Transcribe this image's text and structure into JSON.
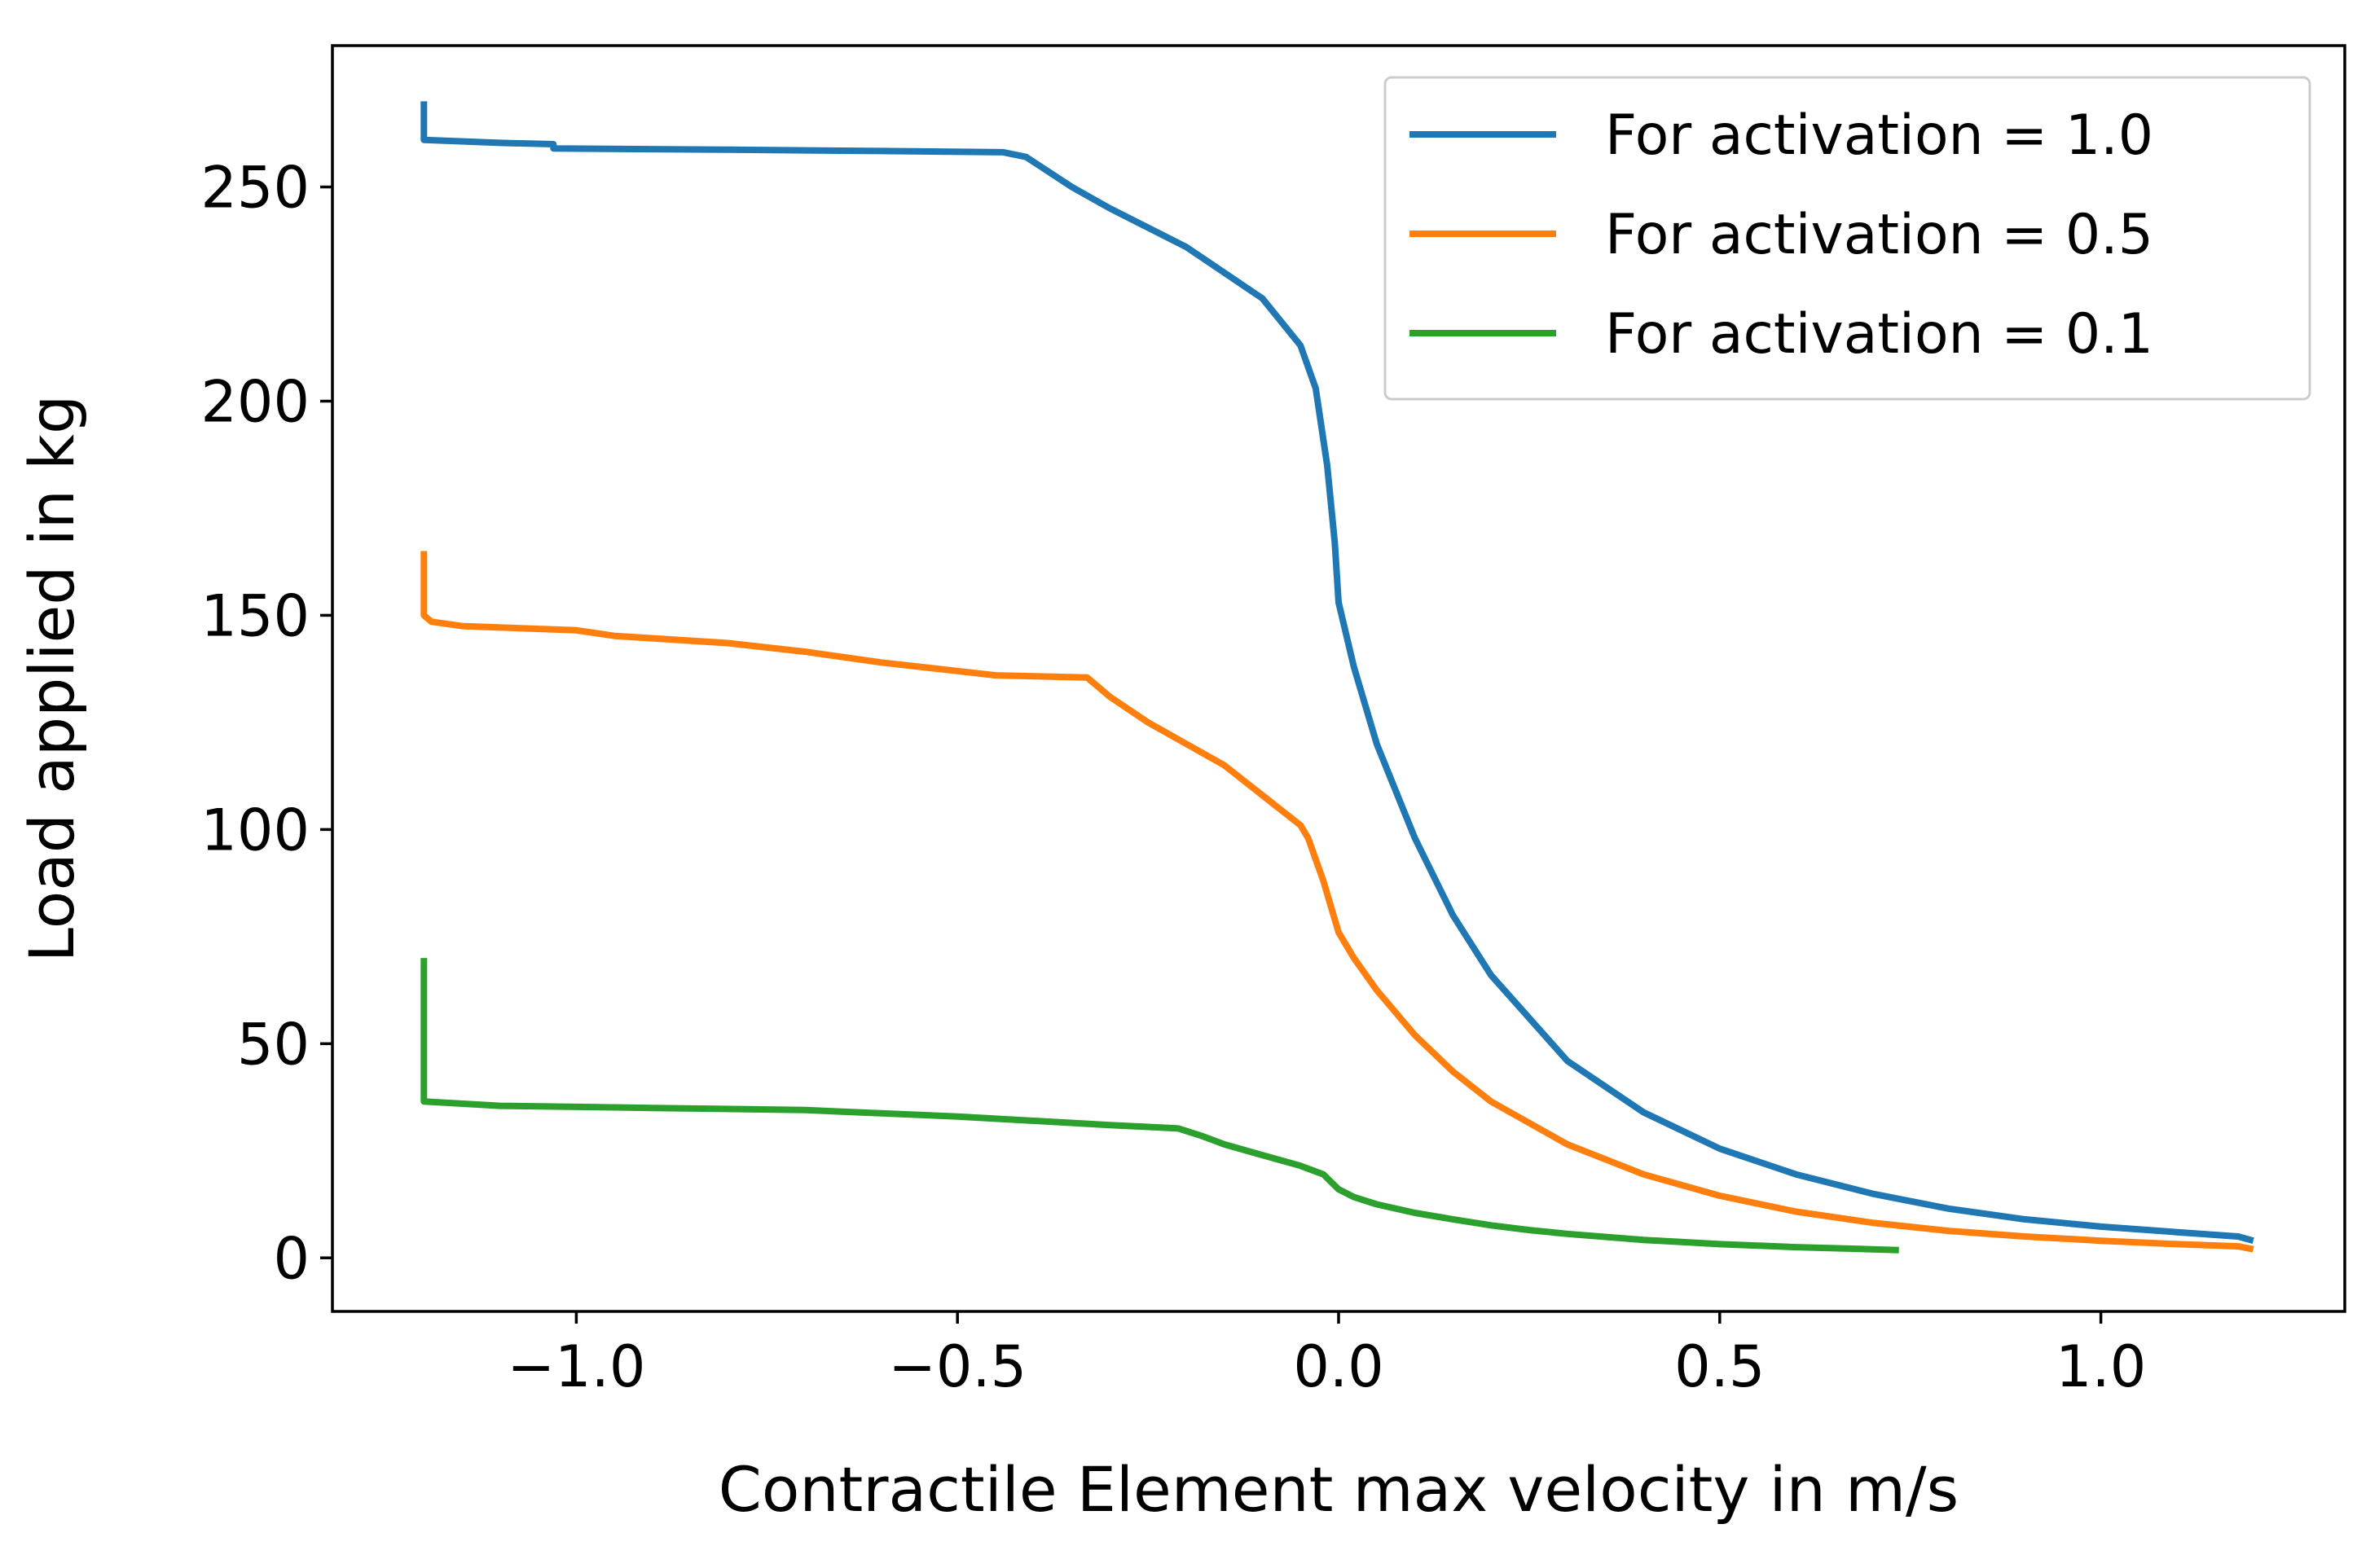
{
  "chart_data": {
    "type": "line",
    "title": "",
    "xlabel": "Contractile Element max velocity in m/s",
    "ylabel": "Load applied in kg",
    "xlim": [
      -1.32,
      1.32
    ],
    "ylim": [
      -12.5,
      283
    ],
    "xticks": [
      -1.0,
      -0.5,
      0.0,
      0.5,
      1.0
    ],
    "xtick_labels": [
      "−1.0",
      "−0.5",
      "0.0",
      "0.5",
      "1.0"
    ],
    "yticks": [
      0,
      50,
      100,
      150,
      200,
      250
    ],
    "ytick_labels": [
      "0",
      "50",
      "100",
      "150",
      "200",
      "250"
    ],
    "grid": false,
    "legend_position": "top-right",
    "series": [
      {
        "name": "For activation = 1.0",
        "color": "#1f77b4",
        "points": [
          [
            -1.2,
            270
          ],
          [
            -1.2,
            261
          ],
          [
            -1.1,
            260.3
          ],
          [
            -1.03,
            260
          ],
          [
            -1.03,
            259
          ],
          [
            -0.8,
            258.7
          ],
          [
            -0.6,
            258.4
          ],
          [
            -0.44,
            258.1
          ],
          [
            -0.41,
            257
          ],
          [
            -0.35,
            250
          ],
          [
            -0.3,
            245
          ],
          [
            -0.2,
            236
          ],
          [
            -0.1,
            224
          ],
          [
            -0.05,
            213
          ],
          [
            -0.03,
            203
          ],
          [
            -0.015,
            185
          ],
          [
            -0.005,
            167
          ],
          [
            0.0,
            153
          ],
          [
            0.02,
            138
          ],
          [
            0.05,
            120
          ],
          [
            0.1,
            98
          ],
          [
            0.15,
            80
          ],
          [
            0.2,
            66
          ],
          [
            0.3,
            46
          ],
          [
            0.4,
            34
          ],
          [
            0.5,
            25.5
          ],
          [
            0.6,
            19.5
          ],
          [
            0.7,
            15
          ],
          [
            0.8,
            11.5
          ],
          [
            0.9,
            9
          ],
          [
            1.0,
            7.3
          ],
          [
            1.1,
            6
          ],
          [
            1.18,
            5
          ],
          [
            1.2,
            4
          ]
        ]
      },
      {
        "name": "For activation = 0.5",
        "color": "#ff7f0e",
        "points": [
          [
            -1.2,
            165
          ],
          [
            -1.2,
            150
          ],
          [
            -1.19,
            148.5
          ],
          [
            -1.15,
            147.5
          ],
          [
            -1.0,
            146.5
          ],
          [
            -0.98,
            146
          ],
          [
            -0.95,
            145.2
          ],
          [
            -0.8,
            143.5
          ],
          [
            -0.7,
            141.5
          ],
          [
            -0.6,
            139
          ],
          [
            -0.5,
            137
          ],
          [
            -0.45,
            136
          ],
          [
            -0.33,
            135.5
          ],
          [
            -0.3,
            131
          ],
          [
            -0.25,
            125
          ],
          [
            -0.2,
            120
          ],
          [
            -0.15,
            115
          ],
          [
            -0.1,
            108
          ],
          [
            -0.05,
            101
          ],
          [
            -0.04,
            98
          ],
          [
            -0.02,
            88
          ],
          [
            -0.01,
            82
          ],
          [
            0.0,
            76
          ],
          [
            0.02,
            70
          ],
          [
            0.05,
            62.5
          ],
          [
            0.1,
            52
          ],
          [
            0.15,
            43.5
          ],
          [
            0.2,
            36.5
          ],
          [
            0.3,
            26.5
          ],
          [
            0.4,
            19.5
          ],
          [
            0.5,
            14.5
          ],
          [
            0.6,
            10.8
          ],
          [
            0.7,
            8.2
          ],
          [
            0.8,
            6.3
          ],
          [
            0.9,
            5
          ],
          [
            1.0,
            4
          ],
          [
            1.1,
            3.2
          ],
          [
            1.18,
            2.7
          ],
          [
            1.2,
            2
          ]
        ]
      },
      {
        "name": "For activation = 0.1",
        "color": "#2ca02c",
        "points": [
          [
            -1.2,
            70
          ],
          [
            -1.2,
            36.5
          ],
          [
            -1.1,
            35.5
          ],
          [
            -0.9,
            35
          ],
          [
            -0.7,
            34.5
          ],
          [
            -0.5,
            33
          ],
          [
            -0.3,
            31
          ],
          [
            -0.21,
            30.2
          ],
          [
            -0.18,
            28.5
          ],
          [
            -0.15,
            26.5
          ],
          [
            -0.1,
            24
          ],
          [
            -0.05,
            21.5
          ],
          [
            -0.02,
            19.5
          ],
          [
            0.0,
            16
          ],
          [
            0.02,
            14.2
          ],
          [
            0.05,
            12.5
          ],
          [
            0.1,
            10.5
          ],
          [
            0.15,
            9
          ],
          [
            0.2,
            7.6
          ],
          [
            0.25,
            6.5
          ],
          [
            0.3,
            5.6
          ],
          [
            0.4,
            4.2
          ],
          [
            0.5,
            3.2
          ],
          [
            0.6,
            2.5
          ],
          [
            0.7,
            2
          ],
          [
            0.735,
            1.8
          ]
        ]
      }
    ]
  }
}
